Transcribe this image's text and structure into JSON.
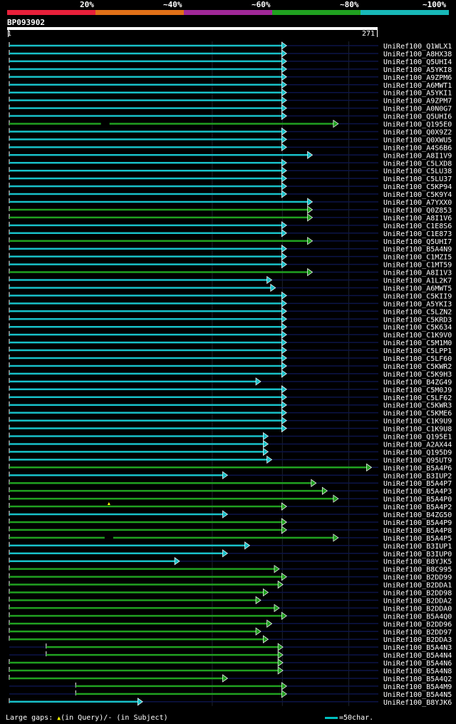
{
  "legend": {
    "labels": [
      "20%",
      "~40%",
      "~60%",
      "~80%",
      "~100%"
    ],
    "colors": [
      "#e8203a",
      "#e07018",
      "#a02898",
      "#20a020",
      "#18b8b8"
    ]
  },
  "query": {
    "id": "BP093902",
    "start": "1",
    "end": "271"
  },
  "hits": [
    {
      "name": "UniRef100_Q1WLX1",
      "end": 0.74,
      "color": "cyan"
    },
    {
      "name": "UniRef100_A8HX38",
      "end": 0.74,
      "color": "cyan"
    },
    {
      "name": "UniRef100_Q5UHI4",
      "end": 0.74,
      "color": "cyan"
    },
    {
      "name": "UniRef100_A5YKI8",
      "end": 0.74,
      "color": "cyan"
    },
    {
      "name": "UniRef100_A9ZPM6",
      "end": 0.74,
      "color": "cyan"
    },
    {
      "name": "UniRef100_A6MWT1",
      "end": 0.74,
      "color": "cyan"
    },
    {
      "name": "UniRef100_A5YKI1",
      "end": 0.74,
      "color": "cyan"
    },
    {
      "name": "UniRef100_A9ZPM7",
      "end": 0.74,
      "color": "cyan"
    },
    {
      "name": "UniRef100_A0N0G7",
      "end": 0.74,
      "color": "cyan"
    },
    {
      "name": "UniRef100_Q5UHI6",
      "end": 0.74,
      "color": "cyan"
    },
    {
      "name": "UniRef100_Q195E0",
      "end": 0.88,
      "color": "green",
      "gap": 0.26
    },
    {
      "name": "UniRef100_Q0X9Z2",
      "end": 0.74,
      "color": "cyan"
    },
    {
      "name": "UniRef100_Q0XWU5",
      "end": 0.74,
      "color": "cyan"
    },
    {
      "name": "UniRef100_A4S6B6",
      "end": 0.74,
      "color": "cyan"
    },
    {
      "name": "UniRef100_A8I1V9",
      "end": 0.81,
      "color": "cyan"
    },
    {
      "name": "UniRef100_C5LXD8",
      "end": 0.74,
      "color": "cyan"
    },
    {
      "name": "UniRef100_C5LU38",
      "end": 0.74,
      "color": "cyan"
    },
    {
      "name": "UniRef100_C5LU37",
      "end": 0.74,
      "color": "cyan"
    },
    {
      "name": "UniRef100_C5KP94",
      "end": 0.74,
      "color": "cyan"
    },
    {
      "name": "UniRef100_C5K9Y4",
      "end": 0.74,
      "color": "cyan"
    },
    {
      "name": "UniRef100_A7YXX0",
      "end": 0.81,
      "color": "cyan"
    },
    {
      "name": "UniRef100_Q0Z853",
      "end": 0.81,
      "color": "green"
    },
    {
      "name": "UniRef100_A8I1V6",
      "end": 0.81,
      "color": "green"
    },
    {
      "name": "UniRef100_C1E8S6",
      "end": 0.74,
      "color": "cyan"
    },
    {
      "name": "UniRef100_C1E873",
      "end": 0.74,
      "color": "cyan"
    },
    {
      "name": "UniRef100_Q5UHI7",
      "end": 0.81,
      "color": "green"
    },
    {
      "name": "UniRef100_B5A4N9",
      "end": 0.74,
      "color": "cyan"
    },
    {
      "name": "UniRef100_C1MZI5",
      "end": 0.74,
      "color": "cyan"
    },
    {
      "name": "UniRef100_C1MT59",
      "end": 0.74,
      "color": "cyan"
    },
    {
      "name": "UniRef100_A8I1V3",
      "end": 0.81,
      "color": "green"
    },
    {
      "name": "UniRef100_A1L2K7",
      "end": 0.7,
      "color": "cyan"
    },
    {
      "name": "UniRef100_A6MWT5",
      "end": 0.71,
      "color": "cyan"
    },
    {
      "name": "UniRef100_C5KII9",
      "end": 0.74,
      "color": "cyan"
    },
    {
      "name": "UniRef100_A5YKI3",
      "end": 0.74,
      "color": "cyan"
    },
    {
      "name": "UniRef100_C5LZN2",
      "end": 0.74,
      "color": "cyan"
    },
    {
      "name": "UniRef100_C5KRD3",
      "end": 0.74,
      "color": "cyan"
    },
    {
      "name": "UniRef100_C5K634",
      "end": 0.74,
      "color": "cyan"
    },
    {
      "name": "UniRef100_C1K9V0",
      "end": 0.74,
      "color": "cyan"
    },
    {
      "name": "UniRef100_C5M1M0",
      "end": 0.74,
      "color": "cyan"
    },
    {
      "name": "UniRef100_C5LPP1",
      "end": 0.74,
      "color": "cyan"
    },
    {
      "name": "UniRef100_C5LF60",
      "end": 0.74,
      "color": "cyan"
    },
    {
      "name": "UniRef100_C5KWR2",
      "end": 0.74,
      "color": "cyan"
    },
    {
      "name": "UniRef100_C5K9H3",
      "end": 0.74,
      "color": "cyan"
    },
    {
      "name": "UniRef100_B4ZG49",
      "end": 0.67,
      "color": "cyan"
    },
    {
      "name": "UniRef100_C5M0J9",
      "end": 0.74,
      "color": "cyan"
    },
    {
      "name": "UniRef100_C5LF62",
      "end": 0.74,
      "color": "cyan"
    },
    {
      "name": "UniRef100_C5KWR3",
      "end": 0.74,
      "color": "cyan"
    },
    {
      "name": "UniRef100_C5KME6",
      "end": 0.74,
      "color": "cyan"
    },
    {
      "name": "UniRef100_C1K9U9",
      "end": 0.74,
      "color": "cyan"
    },
    {
      "name": "UniRef100_C1K9U8",
      "end": 0.74,
      "color": "cyan"
    },
    {
      "name": "UniRef100_Q195E1",
      "end": 0.69,
      "color": "cyan"
    },
    {
      "name": "UniRef100_A2AX44",
      "end": 0.69,
      "color": "cyan"
    },
    {
      "name": "UniRef100_Q195D9",
      "end": 0.69,
      "color": "cyan"
    },
    {
      "name": "UniRef100_Q95UT9",
      "end": 0.7,
      "color": "cyan"
    },
    {
      "name": "UniRef100_B5A4P6",
      "end": 0.97,
      "color": "green"
    },
    {
      "name": "UniRef100_B3IUP2",
      "end": 0.58,
      "color": "cyan"
    },
    {
      "name": "UniRef100_B5A4P7",
      "end": 0.82,
      "color": "green"
    },
    {
      "name": "UniRef100_B5A4P3",
      "end": 0.85,
      "color": "green"
    },
    {
      "name": "UniRef100_B5A4P0",
      "end": 0.88,
      "color": "green"
    },
    {
      "name": "UniRef100_B5A4P2",
      "end": 0.74,
      "color": "green",
      "tri": 0.27
    },
    {
      "name": "UniRef100_B4ZG50",
      "end": 0.58,
      "color": "cyan"
    },
    {
      "name": "UniRef100_B5A4P9",
      "end": 0.74,
      "color": "green"
    },
    {
      "name": "UniRef100_B5A4P8",
      "end": 0.74,
      "color": "green"
    },
    {
      "name": "UniRef100_B5A4P5",
      "end": 0.88,
      "color": "green",
      "gap": 0.27
    },
    {
      "name": "UniRef100_B3IUP1",
      "end": 0.64,
      "color": "cyan"
    },
    {
      "name": "UniRef100_B3IUP0",
      "end": 0.58,
      "color": "cyan"
    },
    {
      "name": "UniRef100_B8YJK5",
      "end": 0.45,
      "color": "cyan"
    },
    {
      "name": "UniRef100_B8C995",
      "end": 0.72,
      "color": "green"
    },
    {
      "name": "UniRef100_B2DD99",
      "end": 0.74,
      "color": "green"
    },
    {
      "name": "UniRef100_B2DDA1",
      "end": 0.73,
      "color": "green"
    },
    {
      "name": "UniRef100_B2DD98",
      "end": 0.69,
      "color": "green"
    },
    {
      "name": "UniRef100_B2DDA2",
      "end": 0.67,
      "color": "green"
    },
    {
      "name": "UniRef100_B2DDA0",
      "end": 0.72,
      "color": "green"
    },
    {
      "name": "UniRef100_B5A4Q0",
      "end": 0.74,
      "color": "green"
    },
    {
      "name": "UniRef100_B2DD96",
      "end": 0.7,
      "color": "green"
    },
    {
      "name": "UniRef100_B2DD97",
      "end": 0.67,
      "color": "green"
    },
    {
      "name": "UniRef100_B2DDA3",
      "end": 0.69,
      "color": "green"
    },
    {
      "name": "UniRef100_B5A4N3",
      "start": 0.1,
      "end": 0.73,
      "color": "green"
    },
    {
      "name": "UniRef100_B5A4N4",
      "start": 0.1,
      "end": 0.73,
      "color": "green"
    },
    {
      "name": "UniRef100_B5A4N6",
      "end": 0.73,
      "color": "green"
    },
    {
      "name": "UniRef100_B5A4N8",
      "end": 0.73,
      "color": "green"
    },
    {
      "name": "UniRef100_B5A4Q2",
      "end": 0.58,
      "color": "green"
    },
    {
      "name": "UniRef100_B5A4M9",
      "start": 0.18,
      "end": 0.74,
      "color": "green"
    },
    {
      "name": "UniRef100_B5A4N5",
      "start": 0.18,
      "end": 0.74,
      "color": "green"
    },
    {
      "name": "UniRef100_B8YJK6",
      "end": 0.35,
      "color": "cyan"
    }
  ],
  "footer": {
    "gaps_prefix": "Large gaps:",
    "gaps_query": "(in Query)/",
    "gaps_subject": "- (in Subject)",
    "scale_label": "=50char."
  }
}
